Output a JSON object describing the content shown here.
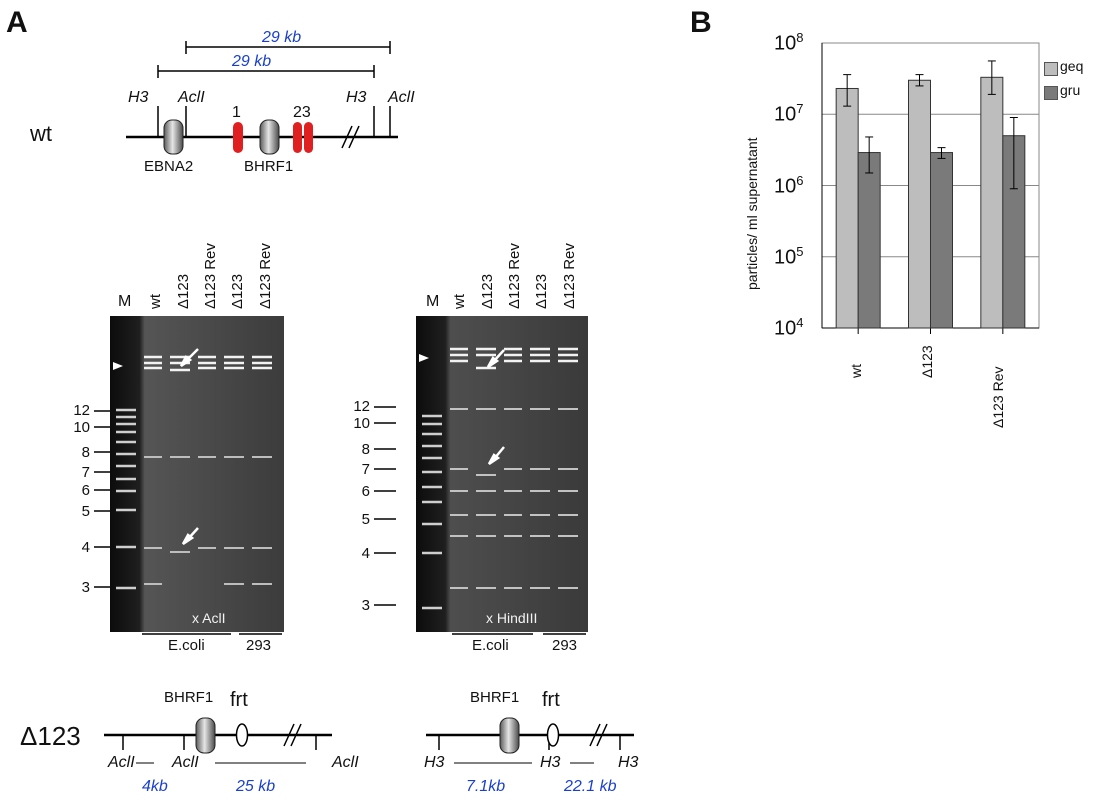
{
  "panel_a": {
    "letter": "A",
    "wt_map": {
      "label": "wt",
      "bracket_upper": "29 kb",
      "bracket_lower": "29 kb",
      "site_h3_left": "H3",
      "site_acli_left": "AclI",
      "site_h3_right": "H3",
      "site_acli_right": "AclI",
      "repeat_1": "1",
      "repeat_23": "23",
      "gene_ebna2": "EBNA2",
      "gene_bhrf1": "BHRF1",
      "repeat_color": "#e02020"
    },
    "gel_left": {
      "marker_lane": "M",
      "lanes": [
        "wt",
        "Δ123",
        "Δ123 Rev",
        "Δ123",
        "Δ123 Rev"
      ],
      "sizes": [
        "12",
        "10",
        "8",
        "7",
        "6",
        "5",
        "4",
        "3"
      ],
      "enzyme": "x AclI",
      "group_ecoli": "E.coli",
      "group_293": "293"
    },
    "gel_right": {
      "marker_lane": "M",
      "lanes": [
        "wt",
        "Δ123",
        "Δ123 Rev",
        "Δ123",
        "Δ123 Rev"
      ],
      "sizes": [
        "12",
        "10",
        "8",
        "7",
        "6",
        "5",
        "4",
        "3"
      ],
      "enzyme": "x HindIII",
      "group_ecoli": "E.coli",
      "group_293": "293"
    },
    "del_map": {
      "label": "Δ123",
      "left_gene": "BHRF1",
      "left_frt": "frt",
      "left_sites": [
        "AclI",
        "AclI",
        "AclI"
      ],
      "left_frag1": "4kb",
      "left_frag2": "25 kb",
      "right_gene": "BHRF1",
      "right_frt": "frt",
      "right_sites": [
        "H3",
        "H3",
        "H3"
      ],
      "right_frag1": "7.1kb",
      "right_frag2": "22.1 kb"
    }
  },
  "panel_b": {
    "letter": "B",
    "ylabel": "particles/ ml supernatant",
    "yticks": [
      {
        "base": "10",
        "exp": "8"
      },
      {
        "base": "10",
        "exp": "7"
      },
      {
        "base": "10",
        "exp": "6"
      },
      {
        "base": "10",
        "exp": "5"
      },
      {
        "base": "10",
        "exp": "4"
      }
    ],
    "legend_geq": "geq",
    "legend_gru": "gru"
  },
  "chart_data": {
    "type": "bar",
    "scale": "log",
    "ylim": [
      10000,
      100000000
    ],
    "ylabel": "particles/ ml supernatant",
    "categories": [
      "wt",
      "Δ123",
      "Δ123 Rev"
    ],
    "series": [
      {
        "name": "geq",
        "color": "#bdbdbd",
        "values": [
          23000000,
          30000000,
          33000000
        ],
        "err_low": [
          13000000,
          25000000,
          19000000
        ],
        "err_high": [
          36000000,
          36000000,
          56000000
        ]
      },
      {
        "name": "gru",
        "color": "#7a7a7a",
        "values": [
          2900000,
          2900000,
          5000000
        ],
        "err_low": [
          1500000,
          2400000,
          900000
        ],
        "err_high": [
          4800000,
          3400000,
          9000000
        ]
      }
    ],
    "grid": true,
    "legend": "top-right"
  }
}
